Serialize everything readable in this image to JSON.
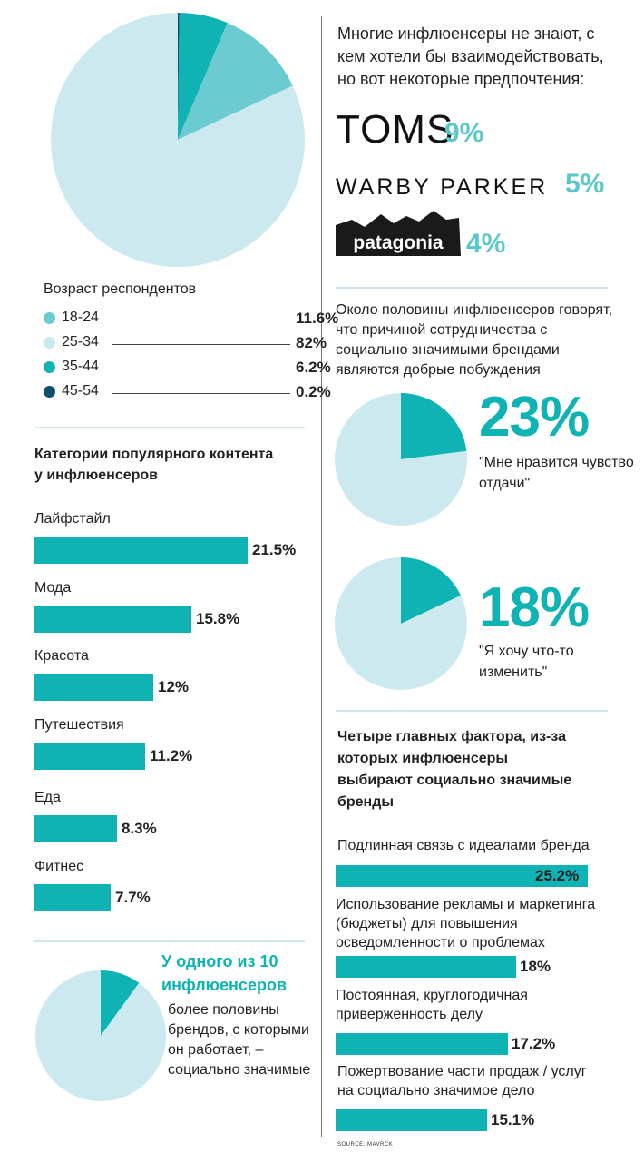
{
  "colors": {
    "accent": "#10b3b3",
    "light": "#cbe9ee",
    "mid": "#6ccbd1",
    "dark": "#0b4f6c"
  },
  "chart_data": [
    {
      "type": "pie",
      "title": "Возраст респондентов",
      "categories": [
        "18-24",
        "25-34",
        "35-44",
        "45-54"
      ],
      "values": [
        11.6,
        82,
        6.2,
        0.2
      ],
      "labels": [
        "11.6%",
        "82%",
        "6.2%",
        "0.2%"
      ],
      "colors": [
        "#6ccbd1",
        "#cbe9ee",
        "#10b3b3",
        "#0b4f6c"
      ]
    },
    {
      "type": "bar",
      "title": "Категории популярного контента у инфлюенсеров",
      "categories": [
        "Лайфстайл",
        "Мода",
        "Красота",
        "Путешествия",
        "Еда",
        "Фитнес"
      ],
      "values": [
        21.5,
        15.8,
        12,
        11.2,
        8.3,
        7.7
      ],
      "labels": [
        "21.5%",
        "15.8%",
        "12%",
        "11.2%",
        "8.3%",
        "7.7%"
      ]
    },
    {
      "type": "pie",
      "values": [
        10,
        90
      ],
      "title": "У одного из 10 инфлюенсеров",
      "note": "более половины брендов, с которыми он работает, – социально значимые"
    },
    {
      "type": "bar",
      "title": "Многие инфлюенсеры не знают, с кем хотели бы взаимодействовать, но вот некоторые предпочтения:",
      "categories": [
        "TOMS",
        "WARBY PARKER",
        "patagonia"
      ],
      "values": [
        9,
        5,
        4
      ],
      "labels": [
        "9%",
        "5%",
        "4%"
      ]
    },
    {
      "type": "pie",
      "values": [
        23,
        77
      ],
      "label": "23%",
      "note": "\"Мне нравится чувство отдачи\""
    },
    {
      "type": "pie",
      "values": [
        18,
        82
      ],
      "label": "18%",
      "note": "\"Я хочу что-то изменить\""
    },
    {
      "type": "bar",
      "title": "Четыре главных фактора, из-за которых инфлюенсеры выбирают социально значимые бренды",
      "categories": [
        "Подлинная связь с идеалами бренда",
        "Использование рекламы и маркетинга (бюджеты) для повышения осведомленности о проблемах",
        "Постоянная, круглогодичная приверженность делу",
        "Пожертвование части продаж / услуг на социально значимое дело"
      ],
      "values": [
        25.2,
        18,
        17.2,
        15.1
      ],
      "labels": [
        "25.2%",
        "18%",
        "17.2%",
        "15.1%"
      ]
    }
  ],
  "text": {
    "age_title": "Возраст респондентов",
    "cat_title_1": "Категории популярного контента",
    "cat_title_2": "у инфлюенсеров",
    "ten_title_1": "У одного из 10",
    "ten_title_2": "инфлюенсеров",
    "ten_note_1": "более половины",
    "ten_note_2": "брендов, с которыми",
    "ten_note_3": "он работает, –",
    "ten_note_4": "социально значимые",
    "brands_intro_1": "Многие инфлюенсеры не знают, с",
    "brands_intro_2": "кем хотели бы взаимодействовать,",
    "brands_intro_3": "но вот некоторые предпочтения:",
    "half_intro_1": "Около половины инфлюенсеров говорят,",
    "half_intro_2": "что причиной сотрудничества с",
    "half_intro_3": "социально значимыми брендами",
    "half_intro_4": "являются добрые побуждения",
    "q1_1": "\"Мне нравится чувство",
    "q1_2": "отдачи\"",
    "q2_1": "\"Я хочу что-то",
    "q2_2": "изменить\"",
    "factors_title_1": "Четыре главных фактора, из-за",
    "factors_title_2": "которых инфлюенсеры",
    "factors_title_3": "выбирают социально значимые",
    "factors_title_4": "бренды",
    "f1_1": "Подлинная связь с идеалами бренда",
    "f2_1": "Использование рекламы и маркетинга",
    "f2_2": "(бюджеты) для повышения",
    "f2_3": "осведомленности о проблемах",
    "f3_1": "Постоянная, круглогодичная",
    "f3_2": "приверженность делу",
    "f4_1": "Пожертвование части продаж / услуг",
    "f4_2": "на социально значимое дело",
    "source": "SOURCE: MAVRCK"
  }
}
